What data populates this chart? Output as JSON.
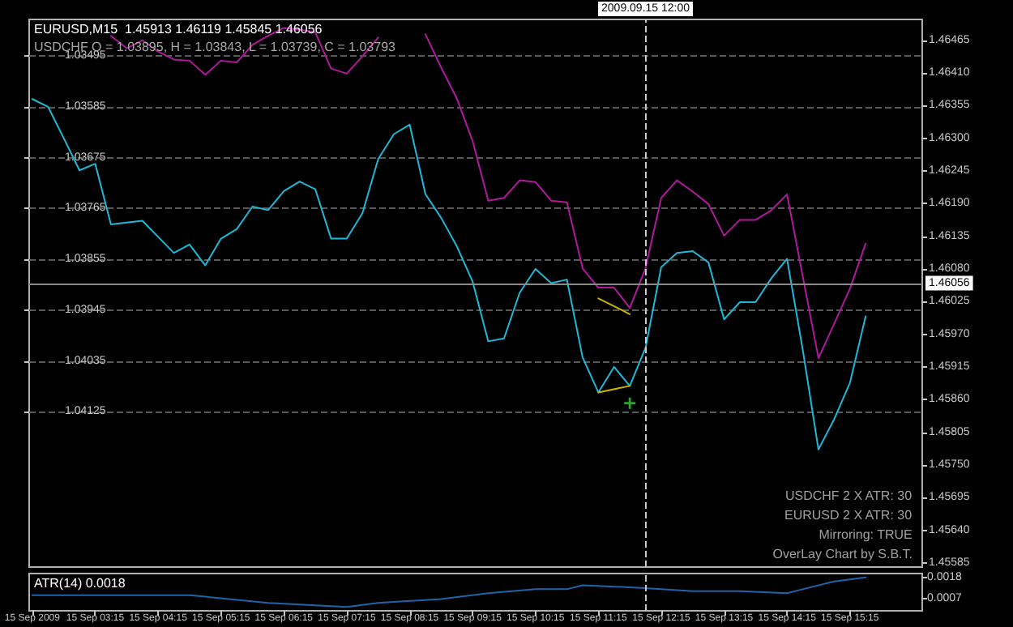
{
  "chart_data": [
    {
      "type": "line",
      "title": "EURUSD,M15  1.45913 1.46119 1.45845 1.46056",
      "subtitle": "USDCHF O = 1.03895, H = 1.03843, L = 1.03739, C = 1.03793",
      "x": [
        "2009-09-15T02:15",
        "2009-09-15T02:30",
        "2009-09-15T02:45",
        "2009-09-15T03:00",
        "2009-09-15T03:15",
        "2009-09-15T03:30",
        "2009-09-15T03:45",
        "2009-09-15T04:00",
        "2009-09-15T04:15",
        "2009-09-15T04:30",
        "2009-09-15T04:45",
        "2009-09-15T05:00",
        "2009-09-15T05:15",
        "2009-09-15T05:30",
        "2009-09-15T05:45",
        "2009-09-15T06:00",
        "2009-09-15T06:15",
        "2009-09-15T06:30",
        "2009-09-15T06:45",
        "2009-09-15T07:00",
        "2009-09-15T07:15",
        "2009-09-15T07:30",
        "2009-09-15T07:45",
        "2009-09-15T08:00",
        "2009-09-15T08:15",
        "2009-09-15T08:30",
        "2009-09-15T08:45",
        "2009-09-15T09:00",
        "2009-09-15T09:15",
        "2009-09-15T09:30",
        "2009-09-15T09:45",
        "2009-09-15T10:00",
        "2009-09-15T10:15",
        "2009-09-15T10:30",
        "2009-09-15T10:45",
        "2009-09-15T11:00",
        "2009-09-15T11:15",
        "2009-09-15T11:30",
        "2009-09-15T11:45",
        "2009-09-15T12:00",
        "2009-09-15T12:15",
        "2009-09-15T12:30",
        "2009-09-15T12:45",
        "2009-09-15T13:00",
        "2009-09-15T13:15",
        "2009-09-15T13:30",
        "2009-09-15T13:45",
        "2009-09-15T14:00",
        "2009-09-15T14:15",
        "2009-09-15T14:30",
        "2009-09-15T14:45",
        "2009-09-15T15:00",
        "2009-09-15T15:15",
        "2009-09-15T15:30"
      ],
      "series": [
        {
          "color": "#1fb8d6",
          "axis": "y2",
          "values": [
            1.46366,
            1.46353,
            1.463,
            1.46246,
            1.46257,
            1.46155,
            1.46158,
            1.46161,
            1.46134,
            1.46107,
            1.46121,
            1.46086,
            1.46131,
            1.46147,
            1.46185,
            1.46179,
            1.46211,
            1.46227,
            1.46214,
            1.46131,
            1.46131,
            1.46174,
            1.46265,
            1.46307,
            1.46323,
            1.46206,
            1.46166,
            1.46118,
            1.46059,
            1.45958,
            1.45963,
            1.4604,
            1.4608,
            1.46056,
            1.46062,
            1.45931,
            1.45872,
            1.45915,
            1.45883,
            1.45947,
            1.46083,
            1.46107,
            1.4611,
            1.46091,
            1.45995,
            1.46024,
            1.46024,
            1.46064,
            1.46097,
            1.45944,
            1.45776,
            1.45827,
            1.45888,
            1.46
          ]
        },
        {
          "color": "#b0189e",
          "axis": "y",
          "values": [
            null,
            null,
            null,
            null,
            null,
            1.03459,
            1.03481,
            1.03467,
            1.03487,
            1.03501,
            1.03503,
            1.03528,
            1.03503,
            1.03506,
            1.03475,
            1.03459,
            1.03445,
            1.03448,
            1.03453,
            1.03517,
            1.03526,
            1.03495,
            1.03462,
            null,
            null,
            1.03456,
            1.03515,
            1.0357,
            1.03645,
            1.03751,
            1.03746,
            1.03715,
            1.03718,
            1.03751,
            1.03754,
            1.03871,
            1.03905,
            1.03905,
            1.03941,
            1.03871,
            1.03746,
            1.03715,
            1.03735,
            1.03757,
            1.03813,
            1.03785,
            1.03785,
            1.03768,
            1.0374,
            1.03885,
            1.0403,
            1.03969,
            1.03907,
            1.03827
          ]
        },
        {
          "color": "#c8b400",
          "axis": "y2",
          "x": [
            "2009-09-15T11:15",
            "2009-09-15T11:45"
          ],
          "values": [
            1.45872,
            1.45883
          ]
        },
        {
          "color": "#c8b400",
          "axis": "y",
          "x": [
            "2009-09-15T11:15",
            "2009-09-15T11:45"
          ],
          "values": [
            1.03924,
            1.03952
          ]
        },
        {
          "type": "scatter",
          "color": "#3ec83e",
          "axis": "y2",
          "marker": "cross",
          "x": [
            "2009-09-15T11:45"
          ],
          "values": [
            1.45854
          ]
        }
      ],
      "xlim": [
        "2009-09-15T02:12",
        "2009-09-15T16:24"
      ],
      "ylim": [
        1.044,
        1.0343
      ],
      "yticks": [
        1.03495,
        1.03585,
        1.03675,
        1.03765,
        1.03855,
        1.03945,
        1.04035,
        1.04125
      ],
      "y2lim": [
        1.45578,
        1.465
      ],
      "y2ticks": [
        1.46465,
        {
          "value": 1.4641,
          "label": "1.46410"
        },
        1.46355,
        {
          "value": 1.463,
          "label": "1.46300"
        },
        1.46245,
        {
          "value": 1.4619,
          "label": "1.46190"
        },
        1.46135,
        {
          "value": 1.4608,
          "label": "1.46080"
        },
        1.46025,
        {
          "value": 1.4597,
          "label": "1.45970"
        },
        1.45915,
        {
          "value": 1.4586,
          "label": "1.45860"
        },
        1.45805,
        {
          "value": 1.4575,
          "label": "1.45750"
        },
        1.45695,
        {
          "value": 1.4564,
          "label": "1.45640"
        },
        1.45585
      ],
      "ref_lines": [
        {
          "axis": "y2",
          "value": 1.46056,
          "label": "1.46056",
          "color": "#8a8a8a",
          "line_style": "solid"
        },
        {
          "axis": "x",
          "value": "2009-09-15T12:00",
          "label": "2009.09.15 12:00",
          "color": "#c8c8c8",
          "line_style": "dashed"
        }
      ],
      "annotations": [
        "USDCHF 2 X ATR: 30",
        "EURUSD 2 X ATR: 30",
        "Mirroring: TRUE",
        "OverLay Chart by S.B.T."
      ],
      "grid": "y",
      "marker": "none",
      "tick_labels": "y"
    },
    {
      "type": "line",
      "title": "ATR(14) 0.0018",
      "x": [
        "2009-09-15T02:15",
        "2009-09-15T04:45",
        "2009-09-15T06:00",
        "2009-09-15T07:15",
        "2009-09-15T07:45",
        "2009-09-15T08:45",
        "2009-09-15T09:30",
        "2009-09-15T10:15",
        "2009-09-15T10:45",
        "2009-09-15T11:00",
        "2009-09-15T11:45",
        "2009-09-15T12:15",
        "2009-09-15T12:45",
        "2009-09-15T13:30",
        "2009-09-15T14:15",
        "2009-09-15T14:30",
        "2009-09-15T15:00",
        "2009-09-15T15:30"
      ],
      "series": [
        {
          "color": "#1f64a8",
          "values": [
            0.0009,
            0.0009,
            0.0005,
            0.0003,
            0.0005,
            0.0007,
            0.001,
            0.0012,
            0.0012,
            0.0014,
            0.0013,
            0.0012,
            0.0011,
            0.0011,
            0.001,
            0.0012,
            0.0016,
            0.0018
          ]
        }
      ],
      "xlim": [
        "2009-09-15T02:12",
        "2009-09-15T16:24"
      ],
      "xticks": [
        {
          "value": "2009-09-15T02:15",
          "label": "15 Sep 2009"
        },
        {
          "value": "2009-09-15T03:15",
          "label": "15 Sep 03:15"
        },
        {
          "value": "2009-09-15T04:15",
          "label": "15 Sep 04:15"
        },
        {
          "value": "2009-09-15T05:15",
          "label": "15 Sep 05:15"
        },
        {
          "value": "2009-09-15T06:15",
          "label": "15 Sep 06:15"
        },
        {
          "value": "2009-09-15T07:15",
          "label": "15 Sep 07:15"
        },
        {
          "value": "2009-09-15T08:15",
          "label": "15 Sep 08:15"
        },
        {
          "value": "2009-09-15T09:15",
          "label": "15 Sep 09:15"
        },
        {
          "value": "2009-09-15T10:15",
          "label": "15 Sep 10:15"
        },
        {
          "value": "2009-09-15T11:15",
          "label": "15 Sep 11:15"
        },
        {
          "value": "2009-09-15T12:15",
          "label": "15 Sep 12:15"
        },
        {
          "value": "2009-09-15T13:15",
          "label": "15 Sep 13:15"
        },
        {
          "value": "2009-09-15T14:15",
          "label": "15 Sep 14:15"
        },
        {
          "value": "2009-09-15T15:15",
          "label": "15 Sep 15:15"
        }
      ],
      "ylim": [
        0.0001,
        0.002
      ],
      "yticks": [
        0.0018,
        0.0007
      ],
      "ref_lines": [
        {
          "axis": "x",
          "value": "2009-09-15T12:00",
          "color": "#c8c8c8",
          "line_style": "dashed"
        }
      ],
      "marker": "none"
    }
  ]
}
